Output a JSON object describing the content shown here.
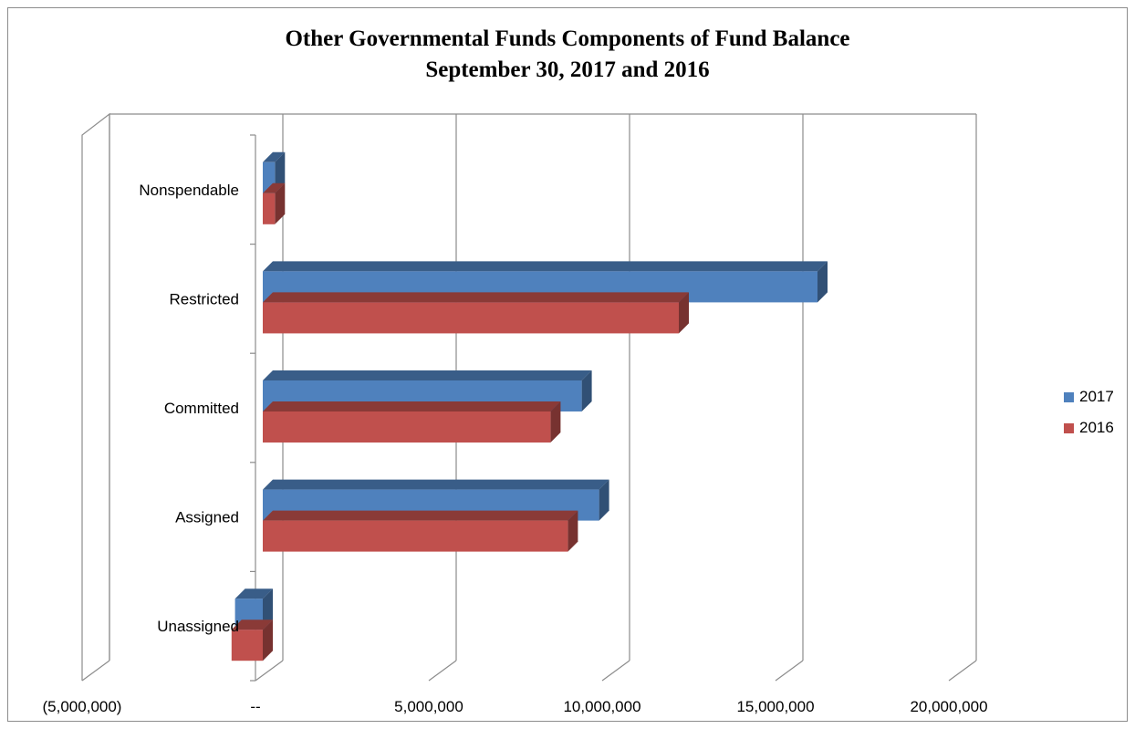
{
  "chart_data": {
    "type": "bar",
    "orientation": "horizontal",
    "style": "3d-clustered",
    "title": "Other Governmental Funds Components of Fund Balance",
    "subtitle": "September 30, 2017 and 2016",
    "categories": [
      "Nonspendable",
      "Restricted",
      "Committed",
      "Assigned",
      "Unassigned"
    ],
    "series": [
      {
        "name": "2017",
        "color": "#4f81bd",
        "values": [
          350000,
          16000000,
          9200000,
          9700000,
          -800000
        ]
      },
      {
        "name": "2016",
        "color": "#c0504d",
        "values": [
          350000,
          12000000,
          8300000,
          8800000,
          -900000
        ]
      }
    ],
    "xlim": [
      -5000000,
      20000000
    ],
    "x_ticks": [
      -5000000,
      0,
      5000000,
      10000000,
      15000000,
      20000000
    ],
    "x_tick_labels": [
      "(5,000,000)",
      "--",
      "5,000,000",
      "10,000,000",
      "15,000,000",
      "20,000,000"
    ],
    "grid": true,
    "legend_position": "right"
  }
}
